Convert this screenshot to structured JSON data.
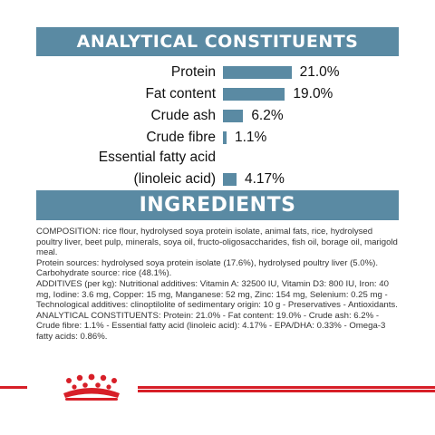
{
  "analytical": {
    "title": "ANALYTICAL CONSTITUENTS",
    "accent_color": "#5a8aa3",
    "items": [
      {
        "label": "Protein",
        "value": "21.0%",
        "percent": 21.0
      },
      {
        "label": "Fat content",
        "value": "19.0%",
        "percent": 19.0
      },
      {
        "label": "Crude ash",
        "value": "6.2%",
        "percent": 6.2
      },
      {
        "label": "Crude fibre",
        "value": "1.1%",
        "percent": 1.1
      },
      {
        "label_line1": "Essential fatty acid",
        "label": "(linoleic acid)",
        "value": "4.17%",
        "percent": 4.17
      }
    ]
  },
  "ingredients": {
    "title": "INGREDIENTS",
    "paragraphs": [
      "COMPOSITION: rice flour, hydrolysed soya protein isolate, animal fats, rice, hydrolysed poultry liver, beet pulp, minerals, soya oil, fructo-oligosaccharides, fish oil, borage oil, marigold meal.",
      "Protein sources: hydrolysed soya protein isolate (17.6%), hydrolysed poultry liver (5.0%).",
      "Carbohydrate source: rice (48.1%).",
      "ADDITIVES (per kg): Nutritional additives: Vitamin A: 32500 IU, Vitamin D3: 800 IU, Iron: 40 mg, Iodine: 3.6 mg, Copper: 15 mg, Manganese: 52 mg, Zinc: 154 mg, Selenium: 0.25 mg - Technological additives: clinoptilolite of sedimentary origin: 10 g - Preservatives - Antioxidants.",
      "ANALYTICAL CONSTITUENTS: Protein: 21.0% - Fat content: 19.0% - Crude ash: 6.2% - Crude fibre: 1.1% - Essential fatty acid (linoleic acid): 4.17% - EPA/DHA: 0.33% - Omega-3 fatty acids: 0.86%."
    ]
  },
  "footer": {
    "brand_color": "#d71f28",
    "logo_icon": "crown-logo-icon"
  }
}
